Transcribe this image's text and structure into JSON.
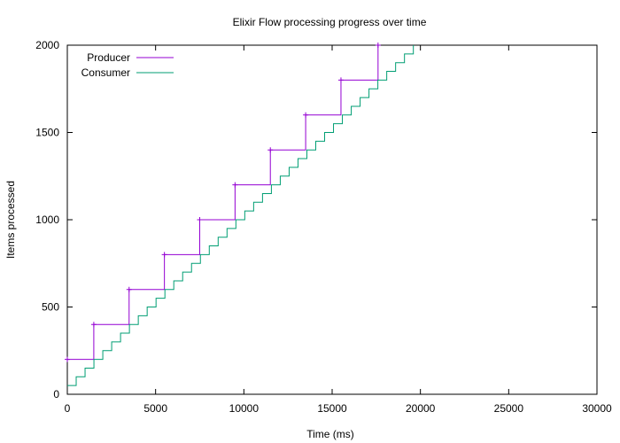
{
  "chart_data": {
    "type": "line",
    "title": "Elixir Flow processing progress over time",
    "xlabel": "Time (ms)",
    "ylabel": "Items processed",
    "xlim": [
      0,
      30000
    ],
    "ylim": [
      0,
      2000
    ],
    "xticks": [
      0,
      5000,
      10000,
      15000,
      20000,
      25000,
      30000
    ],
    "yticks": [
      0,
      500,
      1000,
      1500,
      2000
    ],
    "grid": false,
    "legend_position": "top-left",
    "series": [
      {
        "name": "Producer",
        "color": "#9400d3",
        "step": true,
        "points": [
          {
            "x": 0,
            "y": 200
          },
          {
            "x": 1500,
            "y": 400
          },
          {
            "x": 3500,
            "y": 600
          },
          {
            "x": 5500,
            "y": 800
          },
          {
            "x": 7500,
            "y": 1000
          },
          {
            "x": 9500,
            "y": 1200
          },
          {
            "x": 11500,
            "y": 1400
          },
          {
            "x": 13500,
            "y": 1600
          },
          {
            "x": 15500,
            "y": 1800
          },
          {
            "x": 17600,
            "y": 2000
          }
        ]
      },
      {
        "name": "Consumer",
        "color": "#009e73",
        "step": true,
        "start": {
          "x": 0,
          "y": 50
        },
        "end": {
          "x": 19600,
          "y": 2000
        },
        "step_count": 39
      }
    ]
  }
}
